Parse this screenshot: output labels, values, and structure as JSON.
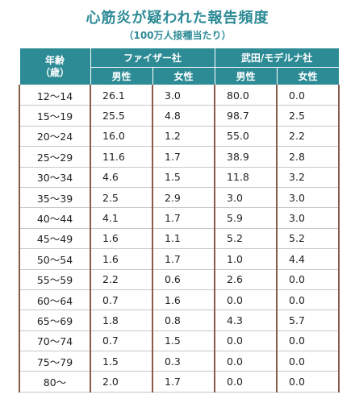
{
  "title": "心筋炎が疑われた報告頻度",
  "subtitle": "（100万人接種当たり）",
  "header": {
    "age_line1": "年齢",
    "age_line2": "（歳）",
    "pfizer": "ファイザー社",
    "moderna": "武田/モデルナ社",
    "male": "男性",
    "female": "女性"
  },
  "rows": [
    {
      "age": "12～14",
      "pf_m": "26.1",
      "pf_f": "3.0",
      "mo_m": "80.0",
      "mo_f": "0.0"
    },
    {
      "age": "15～19",
      "pf_m": "25.5",
      "pf_f": "4.8",
      "mo_m": "98.7",
      "mo_f": "2.5"
    },
    {
      "age": "20～24",
      "pf_m": "16.0",
      "pf_f": "1.2",
      "mo_m": "55.0",
      "mo_f": "2.2"
    },
    {
      "age": "25～29",
      "pf_m": "11.6",
      "pf_f": "1.7",
      "mo_m": "38.9",
      "mo_f": "2.8"
    },
    {
      "age": "30～34",
      "pf_m": "4.6",
      "pf_f": "1.5",
      "mo_m": "11.8",
      "mo_f": "3.2"
    },
    {
      "age": "35～39",
      "pf_m": "2.5",
      "pf_f": "2.9",
      "mo_m": "3.0",
      "mo_f": "3.0"
    },
    {
      "age": "40～44",
      "pf_m": "4.1",
      "pf_f": "1.7",
      "mo_m": "5.9",
      "mo_f": "3.0"
    },
    {
      "age": "45～49",
      "pf_m": "1.6",
      "pf_f": "1.1",
      "mo_m": "5.2",
      "mo_f": "5.2"
    },
    {
      "age": "50～54",
      "pf_m": "1.6",
      "pf_f": "1.7",
      "mo_m": "1.0",
      "mo_f": "4.4"
    },
    {
      "age": "55～59",
      "pf_m": "2.2",
      "pf_f": "0.6",
      "mo_m": "2.6",
      "mo_f": "0.0"
    },
    {
      "age": "60～64",
      "pf_m": "0.7",
      "pf_f": "1.6",
      "mo_m": "0.0",
      "mo_f": "0.0"
    },
    {
      "age": "65～69",
      "pf_m": "1.8",
      "pf_f": "0.8",
      "mo_m": "4.3",
      "mo_f": "5.7"
    },
    {
      "age": "70～74",
      "pf_m": "0.7",
      "pf_f": "1.5",
      "mo_m": "0.0",
      "mo_f": "0.0"
    },
    {
      "age": "75～79",
      "pf_m": "1.5",
      "pf_f": "0.3",
      "mo_m": "0.0",
      "mo_f": "0.0"
    },
    {
      "age": "80～",
      "pf_m": "2.0",
      "pf_f": "1.7",
      "mo_m": "0.0",
      "mo_f": "0.0"
    }
  ],
  "colors": {
    "header_bg": "#2d8b96",
    "title": "#2d8b96",
    "row_divider": "#8a5a4a"
  }
}
